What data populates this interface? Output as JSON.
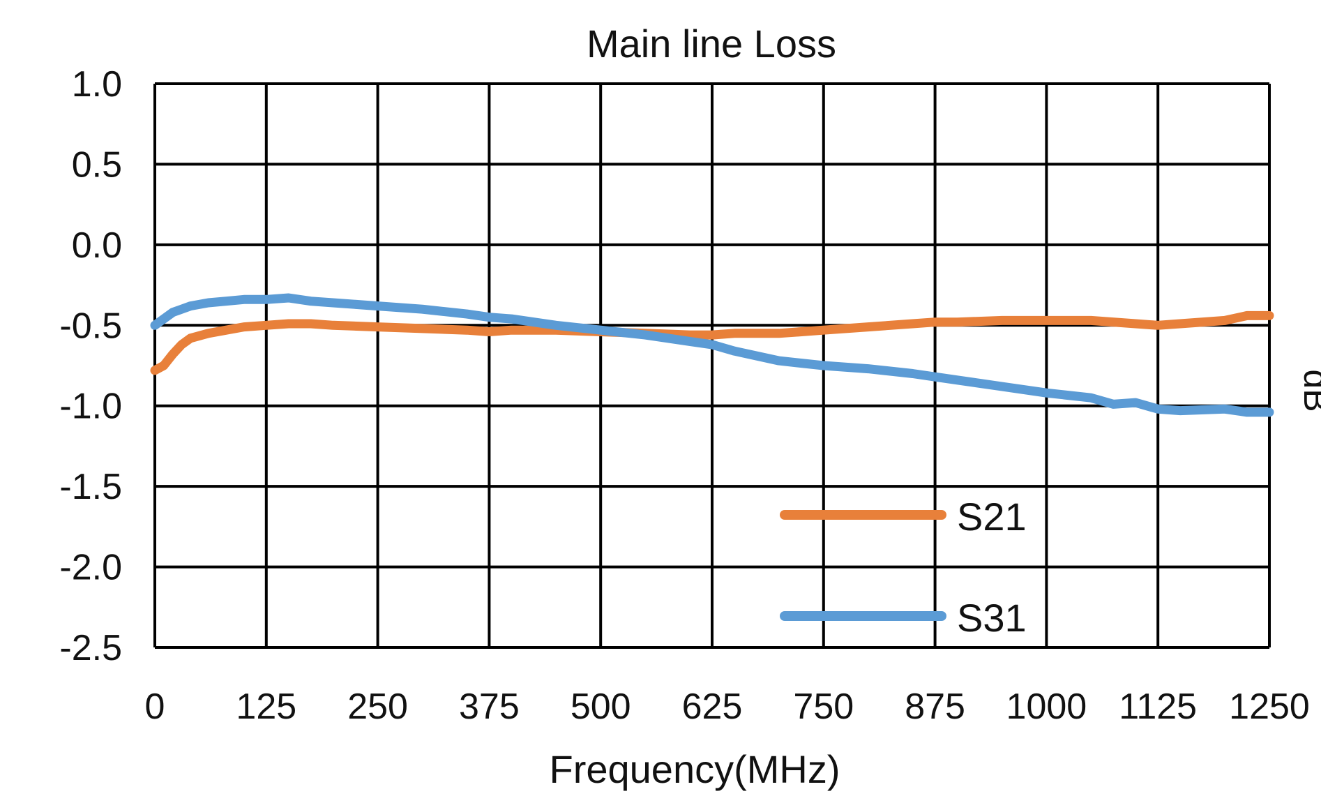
{
  "chart_data": {
    "type": "line",
    "title": "Main line Loss",
    "xlabel": "Frequency(MHz)",
    "ylabel": "dB",
    "xlim": [
      0,
      1250
    ],
    "ylim": [
      -2.5,
      1.0
    ],
    "xticks": [
      "0",
      "125",
      "250",
      "375",
      "500",
      "625",
      "750",
      "875",
      "1000",
      "1125",
      "1250"
    ],
    "yticks": [
      "1.0",
      "0.5",
      "0.0",
      "-0.5",
      "-1.0",
      "-1.5",
      "-2.0",
      "-2.5"
    ],
    "grid": true,
    "legend_position": "bottom-center",
    "series": [
      {
        "name": "S21",
        "color": "#E8803A",
        "x": [
          0,
          10,
          20,
          30,
          40,
          60,
          80,
          100,
          125,
          150,
          175,
          200,
          250,
          300,
          350,
          375,
          400,
          450,
          500,
          550,
          600,
          625,
          650,
          700,
          750,
          800,
          850,
          875,
          900,
          950,
          1000,
          1050,
          1100,
          1125,
          1150,
          1200,
          1225,
          1250
        ],
        "y": [
          -0.78,
          -0.75,
          -0.68,
          -0.62,
          -0.58,
          -0.55,
          -0.53,
          -0.51,
          -0.5,
          -0.49,
          -0.49,
          -0.5,
          -0.51,
          -0.52,
          -0.53,
          -0.54,
          -0.53,
          -0.53,
          -0.54,
          -0.55,
          -0.56,
          -0.56,
          -0.55,
          -0.55,
          -0.53,
          -0.51,
          -0.49,
          -0.48,
          -0.48,
          -0.47,
          -0.47,
          -0.47,
          -0.49,
          -0.5,
          -0.49,
          -0.47,
          -0.44,
          -0.44
        ]
      },
      {
        "name": "S31",
        "color": "#5B9BD5",
        "x": [
          0,
          20,
          40,
          60,
          80,
          100,
          125,
          150,
          175,
          200,
          250,
          300,
          350,
          375,
          400,
          450,
          500,
          550,
          600,
          625,
          650,
          700,
          750,
          800,
          850,
          875,
          900,
          950,
          1000,
          1050,
          1075,
          1100,
          1125,
          1150,
          1200,
          1225,
          1250
        ],
        "y": [
          -0.5,
          -0.42,
          -0.38,
          -0.36,
          -0.35,
          -0.34,
          -0.34,
          -0.33,
          -0.35,
          -0.36,
          -0.38,
          -0.4,
          -0.43,
          -0.45,
          -0.46,
          -0.5,
          -0.53,
          -0.56,
          -0.6,
          -0.62,
          -0.66,
          -0.72,
          -0.75,
          -0.77,
          -0.8,
          -0.82,
          -0.84,
          -0.88,
          -0.92,
          -0.95,
          -0.99,
          -0.98,
          -1.02,
          -1.03,
          -1.02,
          -1.04,
          -1.04
        ]
      }
    ]
  }
}
